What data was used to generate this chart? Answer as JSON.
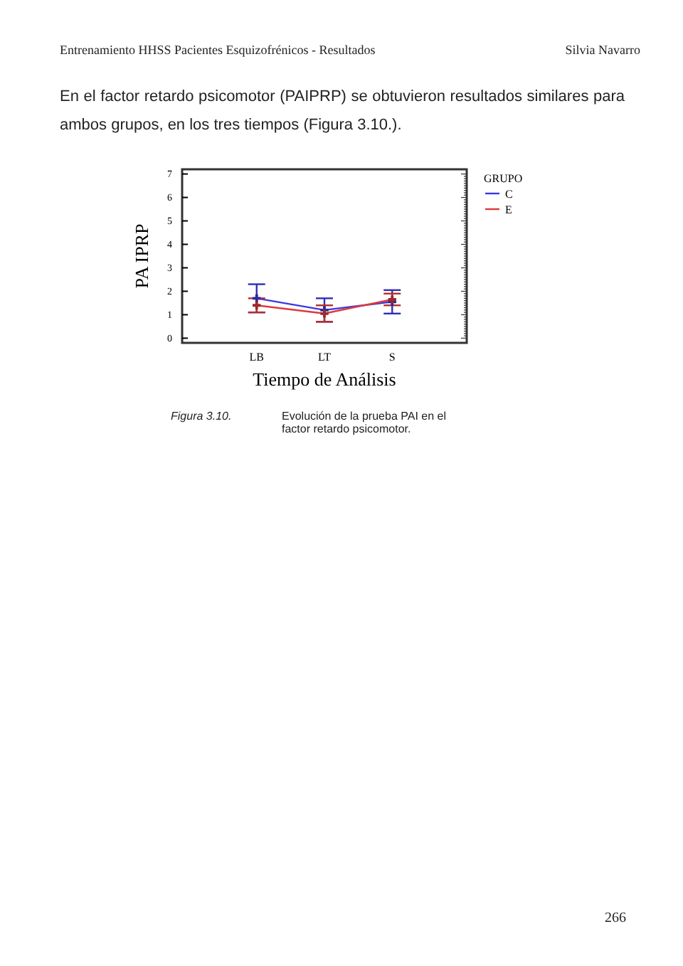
{
  "chart_data": {
    "type": "line",
    "xlabel": "Tiempo de Análisis",
    "ylabel": "PA IPRP",
    "legend_title": "GRUPO",
    "legend": "top right",
    "categories": [
      "LB",
      "LT",
      "S"
    ],
    "series": [
      {
        "name": "C",
        "color": "#3a3ae0",
        "values": [
          1.7,
          1.2,
          1.55
        ],
        "errors": [
          0.6,
          0.5,
          0.5
        ]
      },
      {
        "name": "E",
        "color": "#e03a3a",
        "values": [
          1.4,
          1.05,
          1.65
        ],
        "errors": [
          0.3,
          0.35,
          0.25
        ]
      }
    ],
    "ylim": [
      -0.2,
      7.2
    ],
    "yticks": [
      0,
      1,
      2,
      3,
      4,
      5,
      6,
      7
    ],
    "grid": false,
    "marker": "cross",
    "line_style": "solid",
    "annotations": [
      "Entrenamiento HHSS Pacientes Esquizofrénicos - Resultados",
      "Silvia Navarro",
      "En el factor retardo psicomotor (PAIPRP) se obtuvieron resultados similares para ambos grupos, en los tres tiempos (Figura 3.10.).",
      "Figura 3.10.",
      "Evolución de la prueba PAI en el factor  retardo psicomotor.",
      "266"
    ]
  }
}
